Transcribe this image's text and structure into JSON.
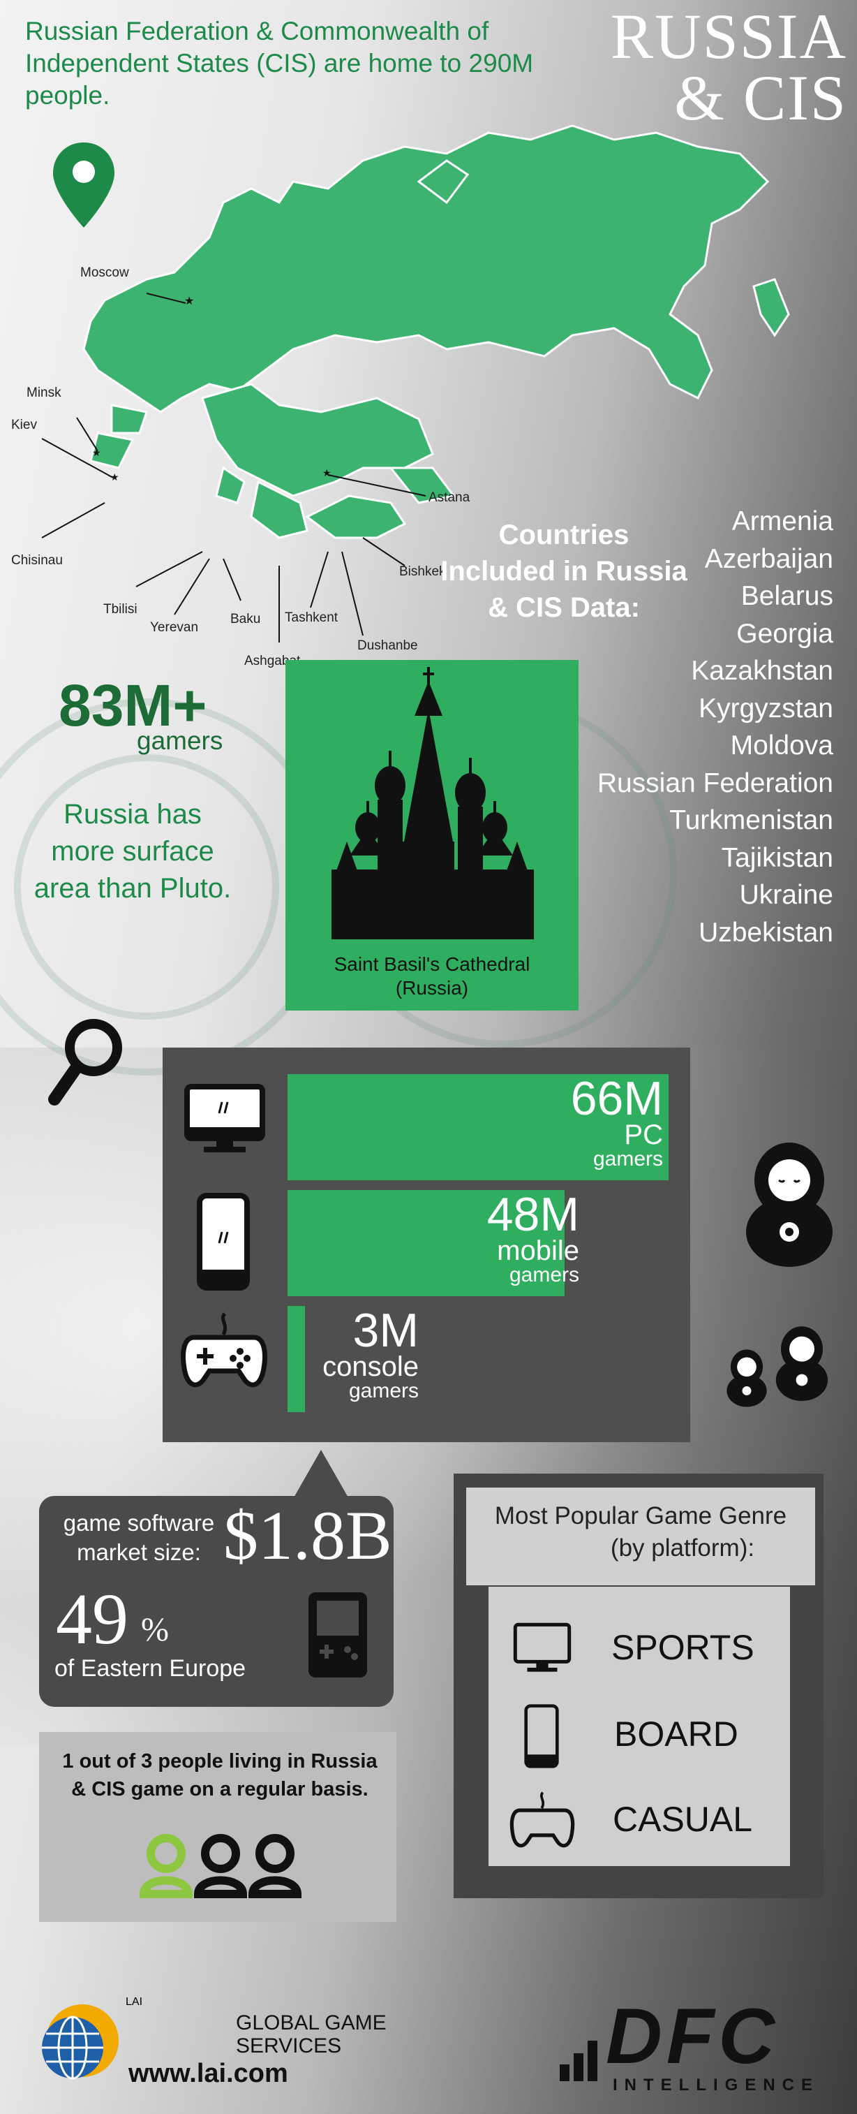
{
  "header": {
    "intro": "Russian Federation & Commonwealth of Independent States (CIS) are home to 290M people.",
    "title_line1": "RUSSIA",
    "title_line2": "& CIS"
  },
  "map": {
    "cities": {
      "moscow": "Moscow",
      "minsk": "Minsk",
      "kiev": "Kiev",
      "chisinau": "Chisinau",
      "tbilisi": "Tbilisi",
      "yerevan": "Yerevan",
      "baku": "Baku",
      "ashgabat": "Ashgabat",
      "tashkent": "Tashkent",
      "dushanbe": "Dushanbe",
      "bishkek": "Bishkek",
      "astana": "Astana"
    },
    "colors": {
      "land": "#3cb371",
      "pin": "#1d8a4a"
    }
  },
  "countries": {
    "heading": "Countries Included in Russia & CIS Data:",
    "list": [
      "Armenia",
      "Azerbaijan",
      "Belarus",
      "Georgia",
      "Kazakhstan",
      "Kyrgyzstan",
      "Moldova",
      "Russian Federation",
      "Turkmenistan",
      "Tajikistan",
      "Ukraine",
      "Uzbekistan"
    ]
  },
  "stats": {
    "gamers_value": "83M+",
    "gamers_label": "gamers",
    "fact": "Russia has more surface area than Pluto.",
    "cathedral_caption_1": "Saint Basil's Cathedral",
    "cathedral_caption_2": "(Russia)"
  },
  "platforms": [
    {
      "value": "66M",
      "label": "PC",
      "sub": "gamers",
      "millions": 66,
      "icon": "monitor-icon"
    },
    {
      "value": "48M",
      "label": "mobile",
      "sub": "gamers",
      "millions": 48,
      "icon": "phone-icon"
    },
    {
      "value": "3M",
      "label": "console",
      "sub": "gamers",
      "millions": 3,
      "icon": "gamepad-icon"
    }
  ],
  "market": {
    "label_1": "game software",
    "label_2": "market size:",
    "value": "$1.8B",
    "share_value": "49",
    "share_unit": "%",
    "share_label": "of Eastern Europe"
  },
  "genres": {
    "title_1": "Most Popular Game Genre",
    "title_2": "(by platform):",
    "items": [
      {
        "label": "SPORTS",
        "icon": "monitor-icon"
      },
      {
        "label": "BOARD",
        "icon": "phone-icon"
      },
      {
        "label": "CASUAL",
        "icon": "gamepad-icon"
      }
    ]
  },
  "people": {
    "text": "1 out of 3 people living in Russia & CIS game on a regular basis.",
    "highlighted": 1,
    "total": 3
  },
  "footer": {
    "lai_logo": "LAI",
    "lai_line1": "GLOBAL GAME",
    "lai_line2": "SERVICES",
    "lai_url": "www.lai.com",
    "dfc_logo": "DFC",
    "dfc_sub": "INTELLIGENCE"
  },
  "colors": {
    "green": "#2fae5f",
    "dark_green": "#1d6b36",
    "accent_green": "#8dc63f"
  }
}
